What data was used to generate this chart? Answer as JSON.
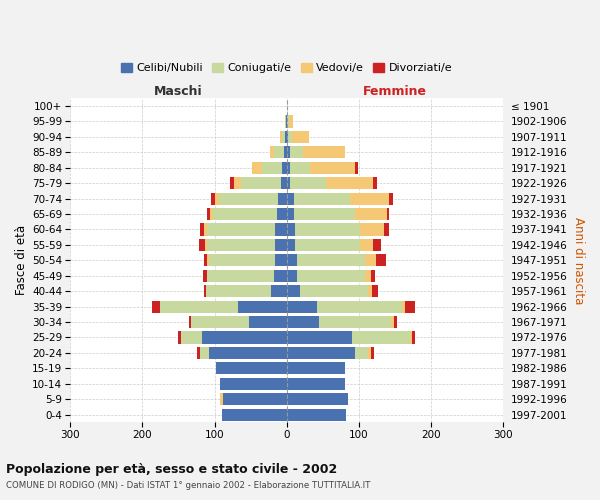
{
  "age_groups": [
    "0-4",
    "5-9",
    "10-14",
    "15-19",
    "20-24",
    "25-29",
    "30-34",
    "35-39",
    "40-44",
    "45-49",
    "50-54",
    "55-59",
    "60-64",
    "65-69",
    "70-74",
    "75-79",
    "80-84",
    "85-89",
    "90-94",
    "95-99",
    "100+"
  ],
  "birth_years": [
    "1997-2001",
    "1992-1996",
    "1987-1991",
    "1982-1986",
    "1977-1981",
    "1972-1976",
    "1967-1971",
    "1962-1966",
    "1957-1961",
    "1952-1956",
    "1947-1951",
    "1942-1946",
    "1937-1941",
    "1932-1936",
    "1927-1931",
    "1922-1926",
    "1917-1921",
    "1912-1916",
    "1907-1911",
    "1902-1906",
    "≤ 1901"
  ],
  "maschi": {
    "celibi": [
      90,
      88,
      92,
      98,
      108,
      118,
      52,
      68,
      22,
      18,
      16,
      16,
      16,
      14,
      12,
      8,
      6,
      4,
      2,
      1,
      0
    ],
    "coniugati": [
      0,
      0,
      0,
      0,
      12,
      28,
      80,
      108,
      90,
      92,
      92,
      95,
      95,
      88,
      82,
      55,
      28,
      14,
      5,
      2,
      0
    ],
    "vedovi": [
      0,
      4,
      0,
      0,
      0,
      0,
      0,
      0,
      0,
      1,
      2,
      2,
      4,
      4,
      6,
      10,
      14,
      5,
      3,
      0,
      0
    ],
    "divorziati": [
      0,
      0,
      0,
      0,
      4,
      5,
      3,
      10,
      3,
      5,
      5,
      8,
      5,
      5,
      5,
      5,
      0,
      0,
      0,
      0,
      0
    ]
  },
  "femmine": {
    "nubili": [
      82,
      85,
      80,
      80,
      95,
      90,
      45,
      42,
      18,
      14,
      14,
      12,
      12,
      10,
      10,
      5,
      4,
      4,
      2,
      1,
      0
    ],
    "coniugate": [
      0,
      0,
      0,
      0,
      18,
      80,
      100,
      118,
      95,
      95,
      95,
      90,
      90,
      85,
      78,
      50,
      28,
      18,
      5,
      2,
      0
    ],
    "vedove": [
      0,
      0,
      0,
      0,
      4,
      4,
      4,
      4,
      5,
      8,
      14,
      18,
      32,
      44,
      54,
      65,
      62,
      58,
      24,
      5,
      1
    ],
    "divorziate": [
      0,
      0,
      0,
      0,
      4,
      4,
      4,
      14,
      8,
      5,
      14,
      10,
      8,
      3,
      5,
      5,
      5,
      0,
      0,
      0,
      0
    ]
  },
  "colors": {
    "celibi_nubili": "#4a72b0",
    "coniugati_e": "#c8d9a0",
    "vedovi_e": "#f5c875",
    "divorziati_e": "#cc2222"
  },
  "title": "Popolazione per età, sesso e stato civile - 2002",
  "subtitle": "COMUNE DI RODIGO (MN) - Dati ISTAT 1° gennaio 2002 - Elaborazione TUTTITALIA.IT",
  "xlabel_left": "Maschi",
  "xlabel_right": "Femmine",
  "ylabel_left": "Fasce di età",
  "ylabel_right": "Anni di nascita",
  "xlim": 300,
  "legend_labels": [
    "Celibi/Nubili",
    "Coniugati/e",
    "Vedovi/e",
    "Divorziati/e"
  ],
  "bg_color": "#f2f2f2",
  "plot_bg": "#ffffff"
}
